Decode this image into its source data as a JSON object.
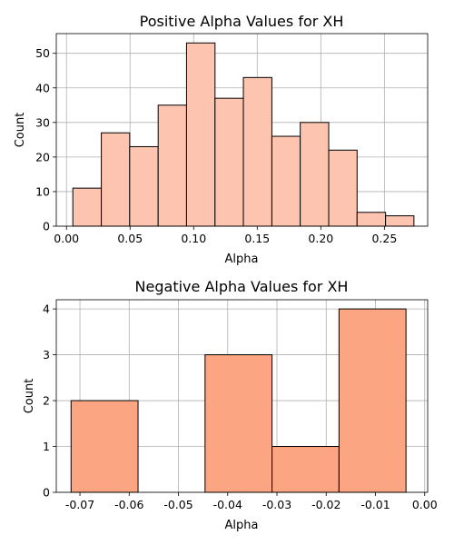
{
  "chart_data": [
    {
      "type": "bar",
      "title": "Positive Alpha Values for XH",
      "xlabel": "Alpha",
      "ylabel": "Count",
      "xlim": [
        -0.008,
        0.284
      ],
      "ylim": [
        0,
        55.7
      ],
      "xticks": [
        0.0,
        0.05,
        0.1,
        0.15,
        0.2,
        0.25
      ],
      "xtick_labels": [
        "0.00",
        "0.05",
        "0.10",
        "0.15",
        "0.20",
        "0.25"
      ],
      "yticks": [
        0,
        10,
        20,
        30,
        40,
        50
      ],
      "ytick_labels": [
        "0",
        "10",
        "20",
        "30",
        "40",
        "50"
      ],
      "bin_edges": [
        0.005,
        0.0274,
        0.0497,
        0.0721,
        0.0944,
        0.1168,
        0.1391,
        0.1615,
        0.1838,
        0.2062,
        0.2285,
        0.2509,
        0.2732
      ],
      "values": [
        11,
        27,
        23,
        35,
        53,
        37,
        43,
        26,
        30,
        22,
        4,
        3
      ],
      "color": "#fdc5b0",
      "grid": true
    },
    {
      "type": "bar",
      "title": "Negative Alpha Values for XH",
      "xlabel": "Alpha",
      "ylabel": "Count",
      "xlim": [
        -0.0748,
        0.0006
      ],
      "ylim": [
        0,
        4.2
      ],
      "xticks": [
        -0.07,
        -0.06,
        -0.05,
        -0.04,
        -0.03,
        -0.02,
        -0.01,
        0.0
      ],
      "xtick_labels": [
        "-0.07",
        "-0.06",
        "-0.05",
        "-0.04",
        "-0.03",
        "-0.02",
        "-0.01",
        "0.00"
      ],
      "yticks": [
        0,
        1,
        2,
        3,
        4
      ],
      "ytick_labels": [
        "0",
        "1",
        "2",
        "3",
        "4"
      ],
      "bin_edges": [
        -0.0718,
        -0.0582,
        -0.0446,
        -0.031,
        -0.0174,
        -0.0038
      ],
      "values": [
        2,
        0,
        3,
        1,
        4
      ],
      "color": "#fca582",
      "grid": true
    }
  ]
}
